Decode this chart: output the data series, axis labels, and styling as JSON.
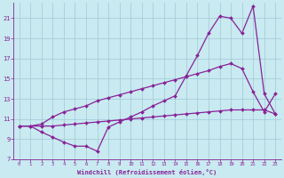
{
  "background_color": "#c8eaf0",
  "grid_color": "#a0c8d8",
  "line_color": "#882299",
  "xlabel": "Windchill (Refroidissement éolien,°C)",
  "xlim": [
    -0.5,
    23.5
  ],
  "ylim": [
    7,
    22.5
  ],
  "yticks": [
    7,
    9,
    11,
    13,
    15,
    17,
    19,
    21
  ],
  "xticks": [
    0,
    1,
    2,
    3,
    4,
    5,
    6,
    7,
    8,
    9,
    10,
    11,
    12,
    13,
    14,
    15,
    16,
    17,
    18,
    19,
    20,
    21,
    22,
    23
  ],
  "s1_x": [
    0,
    1,
    2,
    3,
    4,
    5,
    6,
    7,
    8,
    9,
    10,
    11,
    12,
    13,
    14,
    15,
    16,
    17,
    18,
    19,
    20,
    21,
    22,
    23
  ],
  "s1_y": [
    10.3,
    10.3,
    9.7,
    9.2,
    8.7,
    8.3,
    8.3,
    7.8,
    10.2,
    10.7,
    11.2,
    11.7,
    12.3,
    12.8,
    13.3,
    15.3,
    17.3,
    19.5,
    21.2,
    21.0,
    19.5,
    22.2,
    13.5,
    11.5
  ],
  "s2_x": [
    0,
    1,
    2,
    3,
    4,
    5,
    6,
    7,
    8,
    9,
    10,
    11,
    12,
    13,
    14,
    15,
    16,
    17,
    18,
    19,
    20,
    21,
    22,
    23
  ],
  "s2_y": [
    10.3,
    10.3,
    10.5,
    11.2,
    11.7,
    12.0,
    12.3,
    12.8,
    13.1,
    13.4,
    13.7,
    14.0,
    14.3,
    14.6,
    14.9,
    15.2,
    15.5,
    15.8,
    16.2,
    16.5,
    16.0,
    13.7,
    11.7,
    13.5
  ],
  "s3_x": [
    0,
    1,
    2,
    3,
    4,
    5,
    6,
    7,
    8,
    9,
    10,
    11,
    12,
    13,
    14,
    15,
    16,
    17,
    18,
    19,
    20,
    21,
    22,
    23
  ],
  "s3_y": [
    10.3,
    10.3,
    10.3,
    10.3,
    10.4,
    10.5,
    10.6,
    10.7,
    10.8,
    10.9,
    11.0,
    11.1,
    11.2,
    11.3,
    11.4,
    11.5,
    11.6,
    11.7,
    11.8,
    11.9,
    11.9,
    11.9,
    11.9,
    11.5
  ]
}
